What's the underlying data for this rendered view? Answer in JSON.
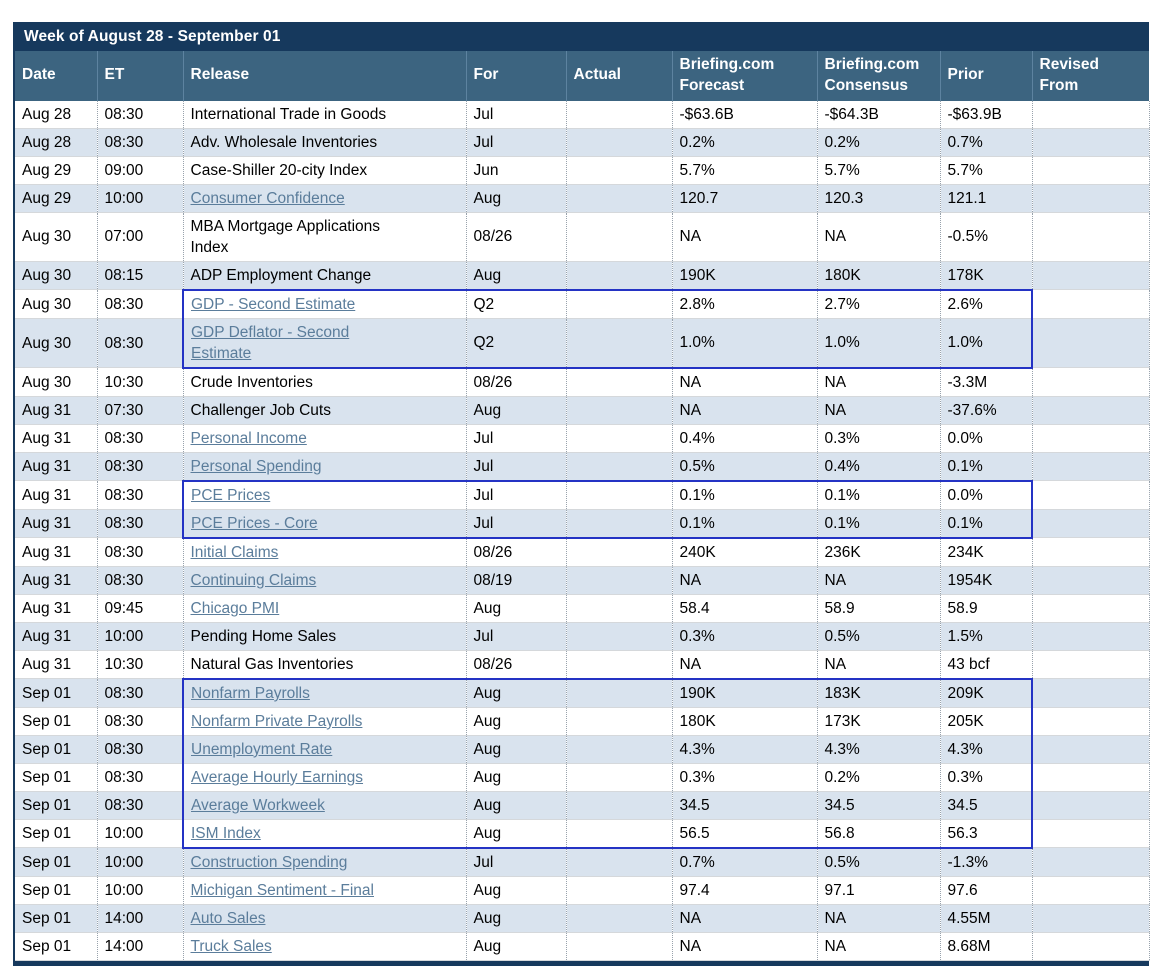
{
  "colors": {
    "title_bar_bg": "#16395d",
    "header_bg": "#3c6480",
    "row_alt_bg": "#d9e3ee",
    "header_text": "#ffffff",
    "text": "#000000",
    "link": "#5b7d9b",
    "highlight_border": "#2433c4"
  },
  "table": {
    "title": "Week of August 28 - September 01",
    "columns": [
      "Date",
      "ET",
      "Release",
      "For",
      "Actual",
      "Briefing.com Forecast",
      "Briefing.com Consensus",
      "Prior",
      "Revised From"
    ],
    "rows": [
      {
        "date": "Aug 28",
        "et": "08:30",
        "release": "International Trade in Goods",
        "link": false,
        "for": "Jul",
        "actual": "",
        "forecast": "-$63.6B",
        "consensus": "-$64.3B",
        "prior": "-$63.9B",
        "revised": ""
      },
      {
        "date": "Aug 28",
        "et": "08:30",
        "release": "Adv. Wholesale Inventories",
        "link": false,
        "for": "Jul",
        "actual": "",
        "forecast": "0.2%",
        "consensus": "0.2%",
        "prior": "0.7%",
        "revised": ""
      },
      {
        "date": "Aug 29",
        "et": "09:00",
        "release": "Case-Shiller 20-city Index",
        "link": false,
        "for": "Jun",
        "actual": "",
        "forecast": "5.7%",
        "consensus": "5.7%",
        "prior": "5.7%",
        "revised": ""
      },
      {
        "date": "Aug 29",
        "et": "10:00",
        "release": "Consumer Confidence",
        "link": true,
        "for": "Aug",
        "actual": "",
        "forecast": "120.7",
        "consensus": "120.3",
        "prior": "121.1",
        "revised": ""
      },
      {
        "date": "Aug 30",
        "et": "07:00",
        "release": "MBA Mortgage Applications Index",
        "link": false,
        "for": "08/26",
        "actual": "",
        "forecast": "NA",
        "consensus": "NA",
        "prior": "-0.5%",
        "revised": ""
      },
      {
        "date": "Aug 30",
        "et": "08:15",
        "release": "ADP Employment Change",
        "link": false,
        "for": "Aug",
        "actual": "",
        "forecast": "190K",
        "consensus": "180K",
        "prior": "178K",
        "revised": ""
      },
      {
        "date": "Aug 30",
        "et": "08:30",
        "release": "GDP - Second Estimate",
        "link": true,
        "for": "Q2",
        "actual": "",
        "forecast": "2.8%",
        "consensus": "2.7%",
        "prior": "2.6%",
        "revised": ""
      },
      {
        "date": "Aug 30",
        "et": "08:30",
        "release": "GDP Deflator - Second Estimate",
        "link": true,
        "for": "Q2",
        "actual": "",
        "forecast": "1.0%",
        "consensus": "1.0%",
        "prior": "1.0%",
        "revised": ""
      },
      {
        "date": "Aug 30",
        "et": "10:30",
        "release": "Crude Inventories",
        "link": false,
        "for": "08/26",
        "actual": "",
        "forecast": "NA",
        "consensus": "NA",
        "prior": "-3.3M",
        "revised": ""
      },
      {
        "date": "Aug 31",
        "et": "07:30",
        "release": "Challenger Job Cuts",
        "link": false,
        "for": "Aug",
        "actual": "",
        "forecast": "NA",
        "consensus": "NA",
        "prior": "-37.6%",
        "revised": ""
      },
      {
        "date": "Aug 31",
        "et": "08:30",
        "release": "Personal Income",
        "link": true,
        "for": "Jul",
        "actual": "",
        "forecast": "0.4%",
        "consensus": "0.3%",
        "prior": "0.0%",
        "revised": ""
      },
      {
        "date": "Aug 31",
        "et": "08:30",
        "release": "Personal Spending",
        "link": true,
        "for": "Jul",
        "actual": "",
        "forecast": "0.5%",
        "consensus": "0.4%",
        "prior": "0.1%",
        "revised": ""
      },
      {
        "date": "Aug 31",
        "et": "08:30",
        "release": "PCE Prices",
        "link": true,
        "for": "Jul",
        "actual": "",
        "forecast": "0.1%",
        "consensus": "0.1%",
        "prior": "0.0%",
        "revised": ""
      },
      {
        "date": "Aug 31",
        "et": "08:30",
        "release": "PCE Prices - Core",
        "link": true,
        "for": "Jul",
        "actual": "",
        "forecast": "0.1%",
        "consensus": "0.1%",
        "prior": "0.1%",
        "revised": ""
      },
      {
        "date": "Aug 31",
        "et": "08:30",
        "release": "Initial Claims",
        "link": true,
        "for": "08/26",
        "actual": "",
        "forecast": "240K",
        "consensus": "236K",
        "prior": "234K",
        "revised": ""
      },
      {
        "date": "Aug 31",
        "et": "08:30",
        "release": "Continuing Claims",
        "link": true,
        "for": "08/19",
        "actual": "",
        "forecast": "NA",
        "consensus": "NA",
        "prior": "1954K",
        "revised": ""
      },
      {
        "date": "Aug 31",
        "et": "09:45",
        "release": "Chicago PMI",
        "link": true,
        "for": "Aug",
        "actual": "",
        "forecast": "58.4",
        "consensus": "58.9",
        "prior": "58.9",
        "revised": ""
      },
      {
        "date": "Aug 31",
        "et": "10:00",
        "release": "Pending Home Sales",
        "link": false,
        "for": "Jul",
        "actual": "",
        "forecast": "0.3%",
        "consensus": "0.5%",
        "prior": "1.5%",
        "revised": ""
      },
      {
        "date": "Aug 31",
        "et": "10:30",
        "release": "Natural Gas Inventories",
        "link": false,
        "for": "08/26",
        "actual": "",
        "forecast": "NA",
        "consensus": "NA",
        "prior": "43 bcf",
        "revised": ""
      },
      {
        "date": "Sep 01",
        "et": "08:30",
        "release": "Nonfarm Payrolls",
        "link": true,
        "for": "Aug",
        "actual": "",
        "forecast": "190K",
        "consensus": "183K",
        "prior": "209K",
        "revised": ""
      },
      {
        "date": "Sep 01",
        "et": "08:30",
        "release": "Nonfarm Private Payrolls",
        "link": true,
        "for": "Aug",
        "actual": "",
        "forecast": "180K",
        "consensus": "173K",
        "prior": "205K",
        "revised": ""
      },
      {
        "date": "Sep 01",
        "et": "08:30",
        "release": "Unemployment Rate",
        "link": true,
        "for": "Aug",
        "actual": "",
        "forecast": "4.3%",
        "consensus": "4.3%",
        "prior": "4.3%",
        "revised": ""
      },
      {
        "date": "Sep 01",
        "et": "08:30",
        "release": "Average Hourly Earnings",
        "link": true,
        "for": "Aug",
        "actual": "",
        "forecast": "0.3%",
        "consensus": "0.2%",
        "prior": "0.3%",
        "revised": ""
      },
      {
        "date": "Sep 01",
        "et": "08:30",
        "release": "Average Workweek",
        "link": true,
        "for": "Aug",
        "actual": "",
        "forecast": "34.5",
        "consensus": "34.5",
        "prior": "34.5",
        "revised": ""
      },
      {
        "date": "Sep 01",
        "et": "10:00",
        "release": "ISM Index",
        "link": true,
        "for": "Aug",
        "actual": "",
        "forecast": "56.5",
        "consensus": "56.8",
        "prior": "56.3",
        "revised": ""
      },
      {
        "date": "Sep 01",
        "et": "10:00",
        "release": "Construction Spending",
        "link": true,
        "for": "Jul",
        "actual": "",
        "forecast": "0.7%",
        "consensus": "0.5%",
        "prior": "-1.3%",
        "revised": ""
      },
      {
        "date": "Sep 01",
        "et": "10:00",
        "release": "Michigan Sentiment - Final",
        "link": true,
        "for": "Aug",
        "actual": "",
        "forecast": "97.4",
        "consensus": "97.1",
        "prior": "97.6",
        "revised": ""
      },
      {
        "date": "Sep 01",
        "et": "14:00",
        "release": "Auto Sales",
        "link": true,
        "for": "Aug",
        "actual": "",
        "forecast": "NA",
        "consensus": "NA",
        "prior": "4.55M",
        "revised": ""
      },
      {
        "date": "Sep 01",
        "et": "14:00",
        "release": "Truck Sales",
        "link": true,
        "for": "Aug",
        "actual": "",
        "forecast": "NA",
        "consensus": "NA",
        "prior": "8.68M",
        "revised": ""
      }
    ],
    "highlight_groups": [
      {
        "rows": [
          6,
          7
        ],
        "cols": [
          2,
          7
        ]
      },
      {
        "rows": [
          12,
          13
        ],
        "cols": [
          2,
          7
        ]
      },
      {
        "rows": [
          19,
          24
        ],
        "cols": [
          2,
          7
        ]
      }
    ]
  }
}
